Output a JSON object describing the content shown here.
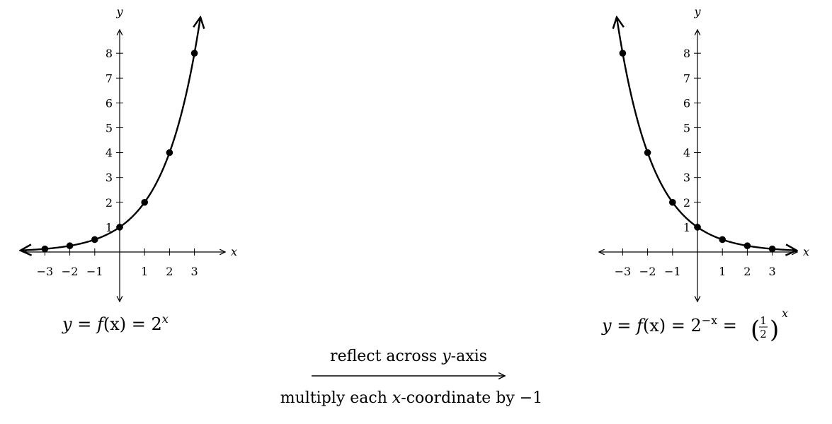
{
  "chart_data": [
    {
      "type": "line",
      "title": "",
      "xlabel": "x",
      "ylabel": "y",
      "xlim": [
        -4,
        4
      ],
      "ylim": [
        -2,
        9
      ],
      "x_ticks": [
        -3,
        -2,
        -1,
        1,
        2,
        3
      ],
      "x_tick_labels": [
        "−3",
        "−2",
        "−1",
        "1",
        "2",
        "3"
      ],
      "y_ticks": [
        1,
        2,
        3,
        4,
        5,
        6,
        7,
        8
      ],
      "y_tick_labels": [
        "1",
        "2",
        "3",
        "4",
        "5",
        "6",
        "7",
        "8"
      ],
      "grid": false,
      "points": [
        {
          "x": -3,
          "y": 0.125
        },
        {
          "x": -2,
          "y": 0.25
        },
        {
          "x": -1,
          "y": 0.5
        },
        {
          "x": 0,
          "y": 1
        },
        {
          "x": 1,
          "y": 2
        },
        {
          "x": 2,
          "y": 4
        },
        {
          "x": 3,
          "y": 8
        }
      ],
      "curve_base": 2,
      "caption": {
        "lhs": "y",
        "eq1": " = ",
        "f": "f",
        "arg": "(x)",
        "eq2": " = 2",
        "exp": "x"
      }
    },
    {
      "type": "line",
      "title": "",
      "xlabel": "x",
      "ylabel": "y",
      "xlim": [
        -4,
        4
      ],
      "ylim": [
        -2,
        9
      ],
      "x_ticks": [
        -3,
        -2,
        -1,
        1,
        2,
        3
      ],
      "x_tick_labels": [
        "−3",
        "−2",
        "−1",
        "1",
        "2",
        "3"
      ],
      "y_ticks": [
        1,
        2,
        3,
        4,
        5,
        6,
        7,
        8
      ],
      "y_tick_labels": [
        "1",
        "2",
        "3",
        "4",
        "5",
        "6",
        "7",
        "8"
      ],
      "grid": false,
      "points": [
        {
          "x": -3,
          "y": 8
        },
        {
          "x": -2,
          "y": 4
        },
        {
          "x": -1,
          "y": 2
        },
        {
          "x": 0,
          "y": 1
        },
        {
          "x": 1,
          "y": 0.5
        },
        {
          "x": 2,
          "y": 0.25
        },
        {
          "x": 3,
          "y": 0.125
        }
      ],
      "curve_base": 0.5,
      "caption": {
        "lhs": "y",
        "eq1": " = ",
        "f": "f",
        "arg": "(x)",
        "eq2": " = 2",
        "exp": "−x",
        "eq3": " = ",
        "num": "1",
        "den": "2",
        "exp2": "x"
      }
    }
  ],
  "transform": {
    "above": "reflect across ",
    "above_var": "y",
    "above_end": "-axis",
    "below": "multiply each ",
    "below_var": "x",
    "below_end": "-coordinate by −1"
  }
}
